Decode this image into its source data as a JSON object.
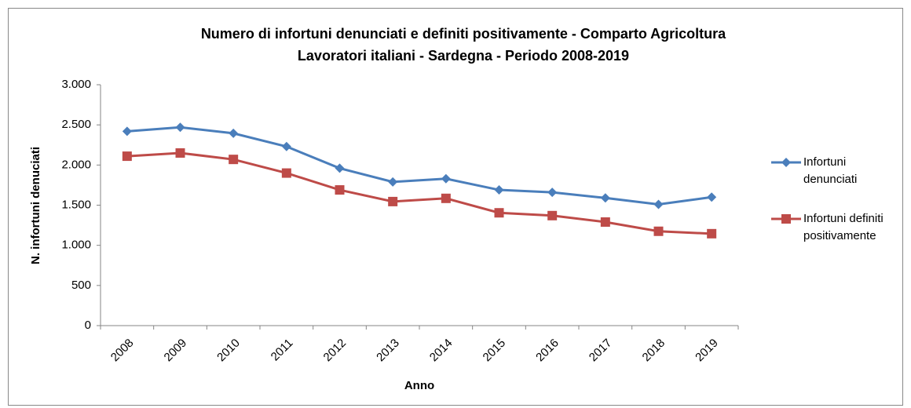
{
  "chart_data": {
    "type": "line",
    "title": "Numero di infortuni denunciati  e definiti positivamente - Comparto Agricoltura",
    "subtitle": "Lavoratori italiani  - Sardegna - Periodo 2008-2019",
    "x_label": "Anno",
    "y_label": "N. infortuni denuciati",
    "categories": [
      "2008",
      "2009",
      "2010",
      "2011",
      "2012",
      "2013",
      "2014",
      "2015",
      "2016",
      "2017",
      "2018",
      "2019"
    ],
    "series": [
      {
        "name": "Infortuni denunciati",
        "color": "#4a7ebb",
        "marker": "diamond",
        "values": [
          2420,
          2470,
          2395,
          2230,
          1960,
          1790,
          1830,
          1690,
          1660,
          1590,
          1510,
          1600
        ]
      },
      {
        "name": "Infortuni definiti positivamente",
        "color": "#be4b48",
        "marker": "square",
        "values": [
          2110,
          2150,
          2070,
          1900,
          1690,
          1545,
          1585,
          1405,
          1370,
          1290,
          1175,
          1145
        ]
      }
    ],
    "ylim": [
      0,
      3000
    ],
    "yticks": [
      0,
      500,
      {
        "value": 1000,
        "label": "1.000"
      },
      {
        "value": 1500,
        "label": "1.500"
      },
      {
        "value": 2000,
        "label": "2.000"
      },
      {
        "value": 2500,
        "label": "2.500"
      },
      {
        "value": 3000,
        "label": "3.000"
      }
    ],
    "grid": false,
    "legend": "right"
  }
}
